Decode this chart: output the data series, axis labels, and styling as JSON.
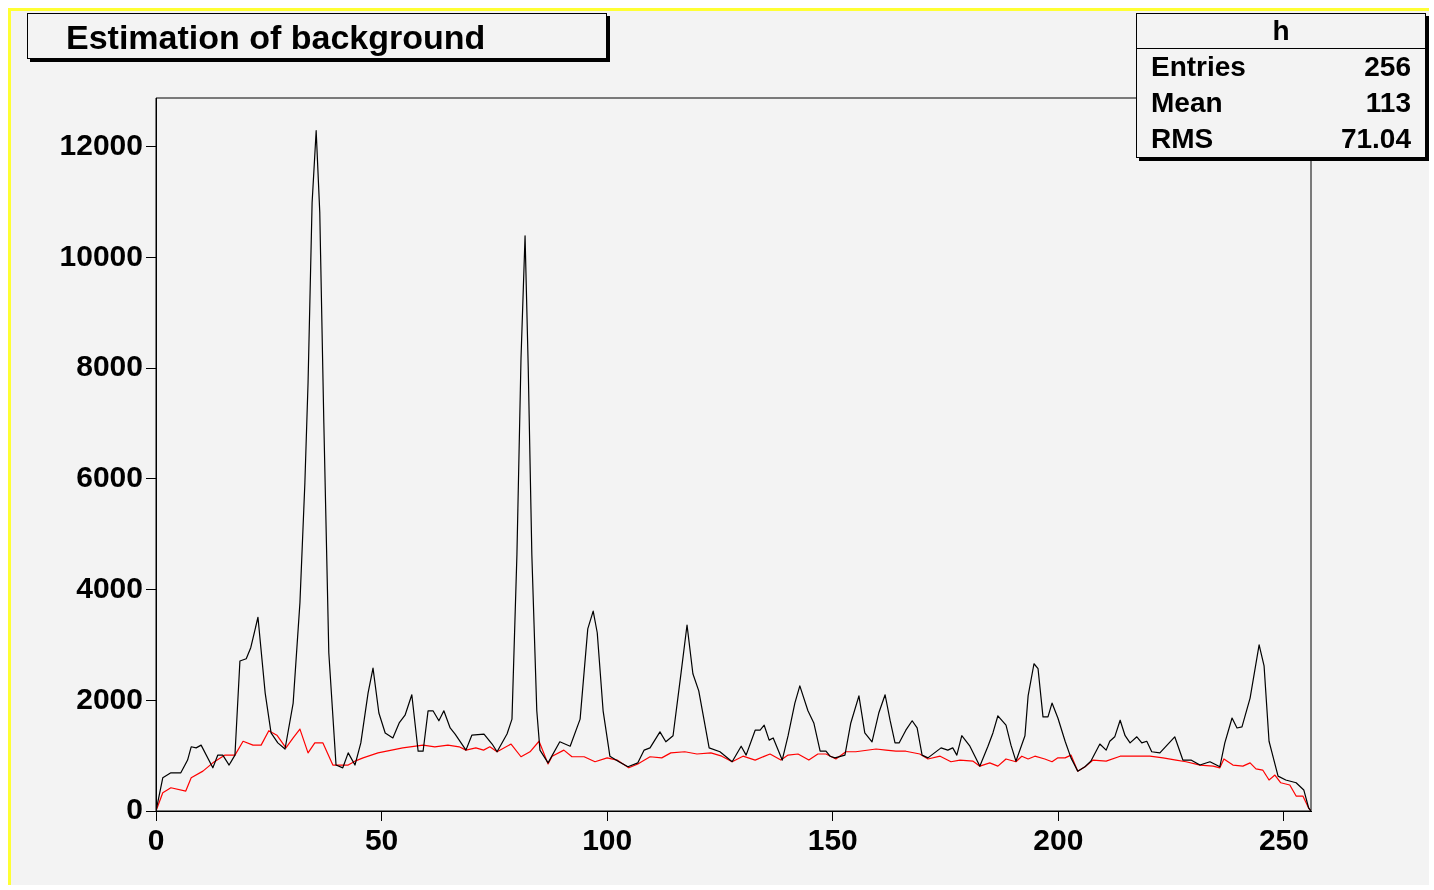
{
  "chart_data": {
    "type": "line",
    "title": "Estimation of background",
    "annotations": [
      "h",
      "Entries",
      "256",
      "Mean",
      "113",
      "RMS",
      "71.04"
    ],
    "xlim": [
      0,
      256
    ],
    "xticks": [
      0,
      50,
      100,
      150,
      200,
      250
    ],
    "ylim": [
      0,
      12880
    ],
    "yticks": [
      0,
      2000,
      4000,
      6000,
      8000,
      10000,
      12000
    ],
    "series": [
      {
        "type": "line",
        "color": "#000000",
        "x": [
          0,
          1.5,
          3.3,
          5.5,
          7,
          7.8,
          8.9,
          10,
          12.6,
          13.7,
          14.8,
          16.2,
          17.5,
          18.6,
          20,
          21,
          22.6,
          24.2,
          25.5,
          27,
          28.6,
          30.4,
          31.9,
          33,
          33.7,
          34.6,
          35.5,
          36.3,
          37.2,
          38.3,
          39.9,
          41.4,
          42.6,
          44.1,
          45.4,
          47,
          48.1,
          49.4,
          50.8,
          52.5,
          53.9,
          55.2,
          56.7,
          58.1,
          59.2,
          60.3,
          61.4,
          62.7,
          63.8,
          65.2,
          66.3,
          68.7,
          70,
          72.7,
          74.5,
          75.6,
          77.8,
          78.9,
          80,
          80.9,
          81.8,
          82.5,
          83.3,
          84.4,
          85.1,
          86.9,
          89.5,
          91.8,
          94,
          95.7,
          96.9,
          97.8,
          99.1,
          100.6,
          102.6,
          104.6,
          106.8,
          108.2,
          109.5,
          111.7,
          113,
          114.6,
          116.4,
          117.7,
          119,
          120.3,
          122.6,
          125,
          127.7,
          129.7,
          130.8,
          132.8,
          133.9,
          134.8,
          135.9,
          136.8,
          138.8,
          140.1,
          141.6,
          142.7,
          144.5,
          145.8,
          147.2,
          148.5,
          149.4,
          150.5,
          152.7,
          154,
          155.8,
          157.1,
          158.7,
          160.2,
          161.6,
          162.7,
          163.8,
          164.7,
          166.2,
          167.6,
          168.7,
          169.8,
          171.1,
          174,
          175.5,
          176.6,
          177.5,
          178.6,
          180.4,
          182.6,
          184.4,
          185.5,
          186.6,
          188.4,
          189.5,
          190.6,
          192.6,
          193.3,
          194.6,
          195.5,
          196.6,
          197.7,
          198.6,
          199.9,
          201.5,
          202.8,
          204.3,
          205.9,
          207.2,
          209.2,
          210.6,
          211.4,
          212.5,
          213.7,
          214.8,
          215.9,
          217.4,
          218.5,
          219.6,
          220.7,
          222.5,
          224.1,
          225.8,
          227.6,
          229.4,
          231.4,
          233.6,
          235.8,
          236.9,
          238.5,
          239.6,
          240.7,
          242.5,
          244.5,
          245.6,
          246.7,
          248.7,
          250.4,
          252.7,
          254.4,
          255.5,
          256
        ],
        "values": [
          0,
          600,
          690,
          690,
          920,
          1160,
          1140,
          1190,
          780,
          1010,
          1010,
          830,
          1010,
          2710,
          2750,
          2950,
          3500,
          2130,
          1410,
          1230,
          1120,
          1950,
          3760,
          5930,
          7730,
          10990,
          12290,
          10810,
          7010,
          2860,
          830,
          780,
          1050,
          830,
          1230,
          2130,
          2580,
          1770,
          1410,
          1320,
          1590,
          1730,
          2100,
          1080,
          1080,
          1810,
          1810,
          1630,
          1810,
          1500,
          1390,
          1100,
          1370,
          1390,
          1210,
          1070,
          1390,
          1660,
          4640,
          8170,
          10390,
          8020,
          4640,
          1810,
          1100,
          870,
          1250,
          1170,
          1660,
          3290,
          3610,
          3220,
          1810,
          990,
          890,
          800,
          870,
          1100,
          1140,
          1430,
          1250,
          1360,
          2510,
          3360,
          2480,
          2170,
          1140,
          1070,
          890,
          1170,
          1010,
          1460,
          1460,
          1550,
          1280,
          1320,
          920,
          1360,
          1950,
          2260,
          1810,
          1590,
          1080,
          1080,
          990,
          960,
          1010,
          1590,
          2080,
          1410,
          1250,
          1770,
          2100,
          1640,
          1230,
          1230,
          1460,
          1630,
          1500,
          1010,
          960,
          1140,
          1100,
          1140,
          1010,
          1360,
          1170,
          810,
          1170,
          1410,
          1720,
          1550,
          1190,
          900,
          1360,
          2080,
          2660,
          2570,
          1700,
          1700,
          1950,
          1680,
          1260,
          960,
          720,
          800,
          900,
          1210,
          1100,
          1260,
          1340,
          1640,
          1360,
          1230,
          1340,
          1230,
          1260,
          1070,
          1050,
          1190,
          1340,
          920,
          920,
          830,
          890,
          800,
          1230,
          1680,
          1500,
          1520,
          2040,
          3000,
          2620,
          1260,
          630,
          560,
          510,
          380,
          50,
          0
        ]
      },
      {
        "type": "line",
        "color": "#ff0000",
        "x": [
          0,
          1.5,
          3.3,
          6.6,
          7.8,
          10.4,
          12.6,
          15.3,
          17.5,
          19.3,
          21.5,
          23.3,
          25,
          26.8,
          28.8,
          30.4,
          31.9,
          33.7,
          35.2,
          37,
          39.2,
          42.6,
          44.1,
          45.9,
          49.2,
          54.7,
          59.2,
          61.8,
          64.7,
          67.2,
          68.7,
          70.9,
          72.6,
          74,
          75.6,
          78.7,
          80.9,
          82.9,
          84.9,
          86.9,
          87.8,
          90.4,
          92.2,
          94.9,
          97.3,
          100,
          102.2,
          104.8,
          106.8,
          109.5,
          112.1,
          114.1,
          117.2,
          119.9,
          123,
          125.4,
          127.7,
          130.1,
          132.8,
          136.1,
          138.5,
          140.1,
          142.3,
          144.7,
          146.7,
          148.5,
          150.7,
          152.9,
          155.1,
          159.6,
          161.8,
          164,
          166.2,
          169.3,
          171.1,
          173.8,
          176.2,
          178.2,
          181.1,
          182.6,
          184.8,
          186.6,
          188.4,
          190.6,
          191.9,
          193.3,
          194.8,
          197,
          198.6,
          199.9,
          201.5,
          202.8,
          204.3,
          206.1,
          207.7,
          210.6,
          213.7,
          218.3,
          220.3,
          223.2,
          226.1,
          228.3,
          231.4,
          234.3,
          235.8,
          236.7,
          238.7,
          240.9,
          242.5,
          243.8,
          245.3,
          246.7,
          248,
          249.3,
          251.3,
          252.7,
          254.2,
          255.5,
          256
        ],
        "values": [
          0,
          330,
          420,
          360,
          600,
          720,
          870,
          1010,
          1010,
          1260,
          1190,
          1190,
          1450,
          1370,
          1140,
          1320,
          1480,
          1050,
          1230,
          1230,
          830,
          830,
          900,
          960,
          1050,
          1140,
          1190,
          1160,
          1190,
          1160,
          1100,
          1140,
          1100,
          1160,
          1070,
          1210,
          980,
          1070,
          1260,
          850,
          990,
          1100,
          980,
          980,
          890,
          960,
          920,
          780,
          850,
          980,
          960,
          1050,
          1070,
          1030,
          1050,
          990,
          890,
          990,
          920,
          1030,
          920,
          1010,
          1030,
          920,
          1030,
          1030,
          940,
          1070,
          1070,
          1120,
          1100,
          1080,
          1080,
          1030,
          940,
          990,
          890,
          920,
          900,
          810,
          870,
          810,
          940,
          890,
          990,
          940,
          990,
          940,
          890,
          960,
          960,
          1010,
          720,
          810,
          920,
          900,
          990,
          990,
          990,
          960,
          920,
          890,
          830,
          810,
          780,
          940,
          830,
          810,
          870,
          760,
          740,
          560,
          650,
          510,
          470,
          270,
          270,
          50,
          0
        ]
      }
    ]
  }
}
